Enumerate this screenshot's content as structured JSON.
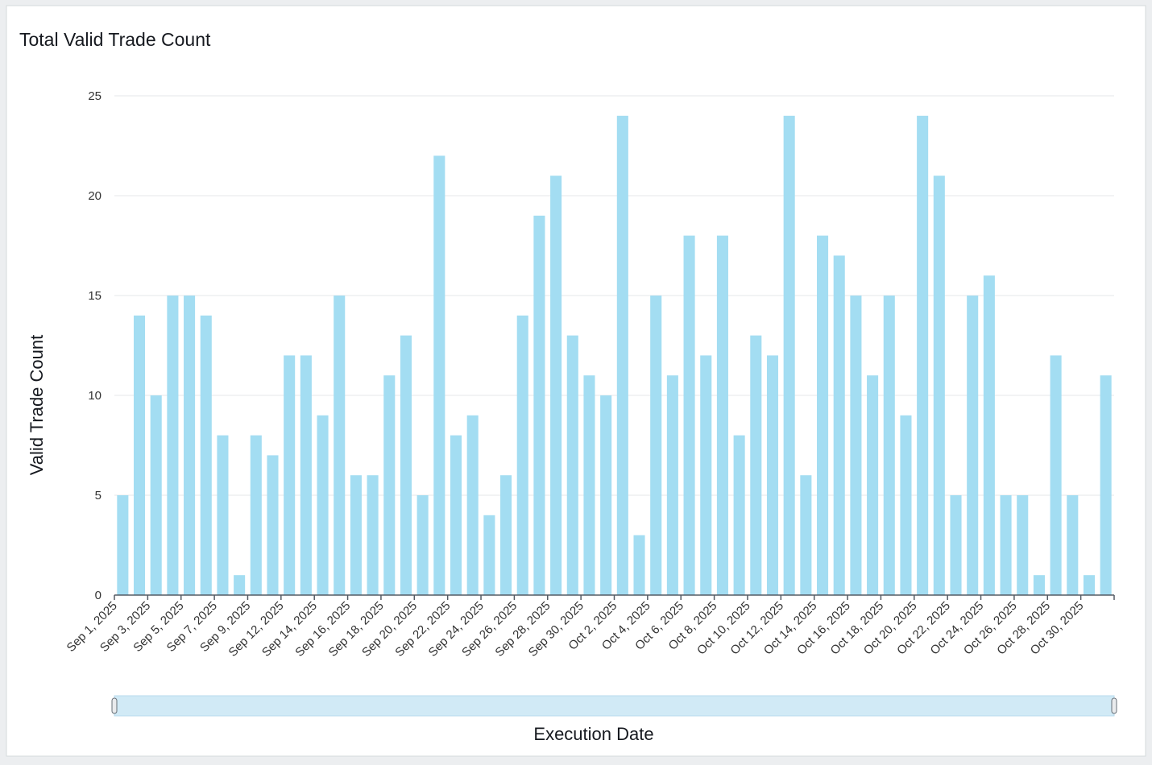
{
  "chart_data": {
    "type": "bar",
    "title": "Total Valid Trade Count",
    "x_label": "Execution Date",
    "y_label": "Valid Trade Count",
    "categories": [
      "Sep 1, 2025",
      null,
      "Sep 3, 2025",
      null,
      "Sep 5, 2025",
      null,
      "Sep 7, 2025",
      null,
      "Sep 9, 2025",
      null,
      "Sep 12, 2025",
      null,
      "Sep 14, 2025",
      null,
      "Sep 16, 2025",
      null,
      "Sep 18, 2025",
      null,
      "Sep 20, 2025",
      null,
      "Sep 22, 2025",
      null,
      "Sep 24, 2025",
      null,
      "Sep 26, 2025",
      null,
      "Sep 28, 2025",
      null,
      "Sep 30, 2025",
      null,
      "Oct 2, 2025",
      null,
      "Oct 4, 2025",
      null,
      "Oct 6, 2025",
      null,
      "Oct 8, 2025",
      null,
      "Oct 10, 2025",
      null,
      "Oct 12, 2025",
      null,
      "Oct 14, 2025",
      null,
      "Oct 16, 2025",
      null,
      "Oct 18, 2025",
      null,
      "Oct 20, 2025",
      null,
      "Oct 22, 2025",
      null,
      "Oct 24, 2025",
      null,
      "Oct 26, 2025",
      null,
      "Oct 28, 2025",
      null,
      "Oct 30, 2025",
      null
    ],
    "values": [
      5,
      14,
      10,
      15,
      15,
      14,
      8,
      1,
      8,
      7,
      12,
      12,
      9,
      15,
      6,
      6,
      11,
      13,
      5,
      22,
      8,
      9,
      4,
      6,
      14,
      19,
      21,
      13,
      11,
      10,
      24,
      3,
      15,
      11,
      18,
      12,
      18,
      8,
      13,
      12,
      24,
      6,
      18,
      17,
      15,
      11,
      15,
      9,
      24,
      21,
      5,
      15,
      16,
      5,
      5,
      1,
      12,
      5,
      1,
      11
    ],
    "color": "#a3ddf2",
    "ylim": [
      0,
      25
    ],
    "yticks": [
      0,
      5,
      10,
      15,
      20,
      25
    ],
    "grid": true
  }
}
